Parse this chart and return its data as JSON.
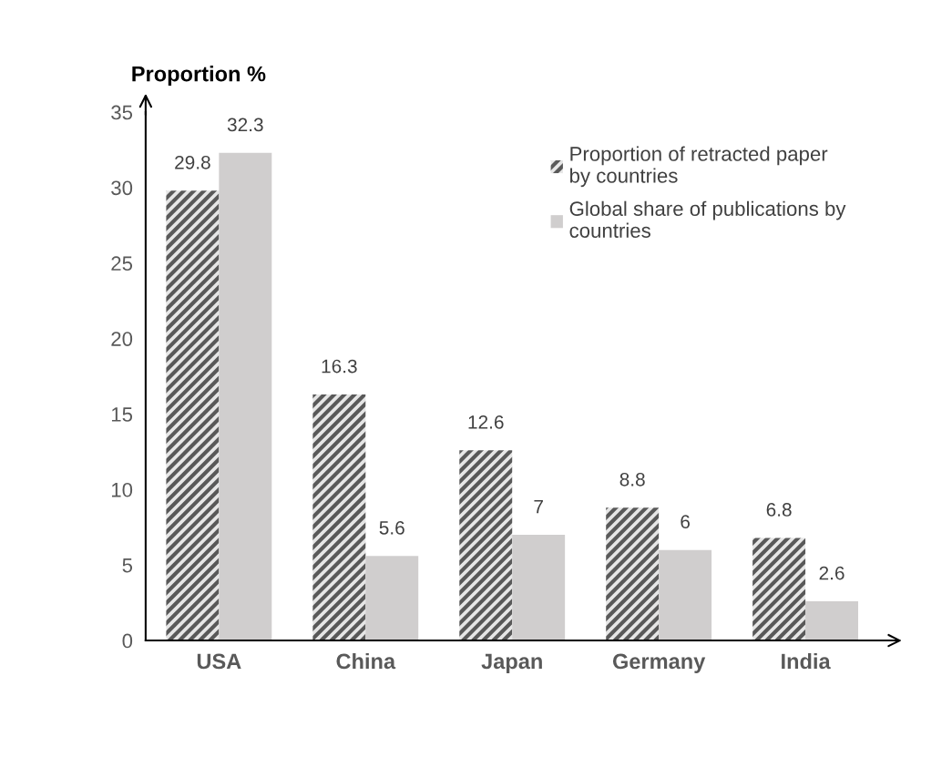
{
  "chart_data": {
    "type": "bar",
    "ylabel": "Proportion %",
    "categories": [
      "USA",
      "China",
      "Japan",
      "Germany",
      "India"
    ],
    "series": [
      {
        "name": "Proportion of retracted paper\nby countries",
        "color": "#595959",
        "values": [
          29.8,
          16.3,
          12.6,
          8.8,
          6.8
        ]
      },
      {
        "name": "Global share of publications by\ncountries",
        "color": "#d0cece",
        "values": [
          32.3,
          5.6,
          7,
          6,
          2.6
        ]
      }
    ],
    "ylim": [
      0,
      35
    ],
    "yticks": [
      0,
      5,
      10,
      15,
      20,
      25,
      30,
      35
    ],
    "data_labels": true,
    "grid": false,
    "legend": "top right"
  }
}
